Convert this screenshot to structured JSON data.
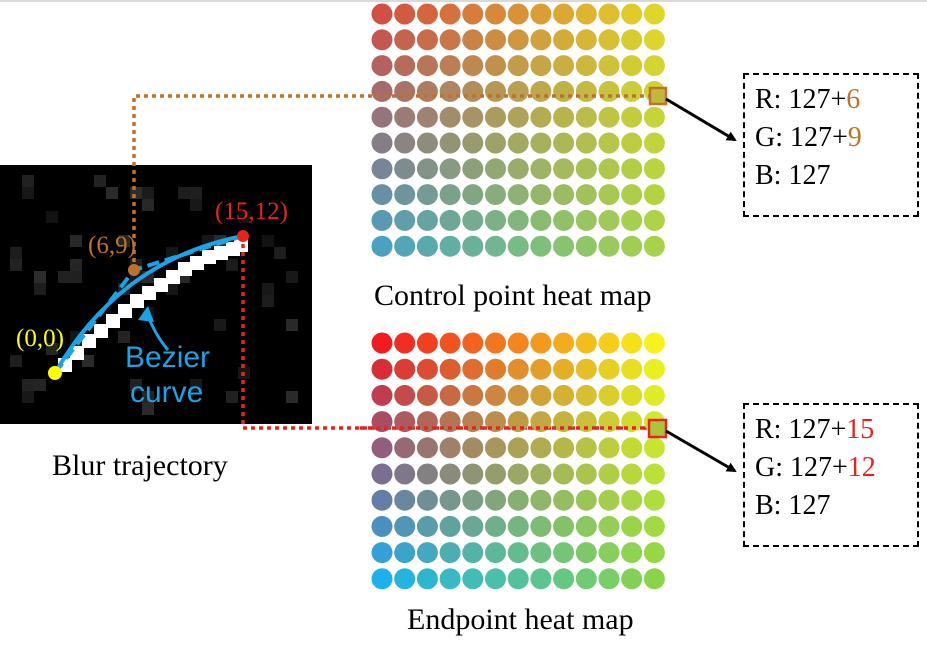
{
  "blur_panel": {
    "caption": "Blur trajectory",
    "points": {
      "start": "(0,0)",
      "control": "(6,9)",
      "end": "(15,12)"
    },
    "curve_label": [
      "Bezier",
      "curve"
    ]
  },
  "heatmaps": {
    "control": {
      "caption": "Control point heat map",
      "readout": {
        "r_prefix": "R: 127+",
        "r_offset": "6",
        "g_prefix": "G: 127+",
        "g_offset": "9",
        "b_text": "B: 127"
      },
      "grid": {
        "cols": 13,
        "rows": 10,
        "highlight": {
          "col": 11,
          "row": 4
        }
      }
    },
    "endpoint": {
      "caption": "Endpoint heat map",
      "readout": {
        "r_prefix": "R: 127+",
        "r_offset": "15",
        "g_prefix": "G: 127+",
        "g_offset": "12",
        "b_text": "B: 127"
      },
      "grid": {
        "cols": 13,
        "rows": 10,
        "highlight": {
          "col": 11,
          "row": 4
        }
      }
    }
  },
  "colors": {
    "control_accent": "#c0722a",
    "endpoint_accent": "#e8231c",
    "start_point": "#ffff00",
    "curve": "#1aa3e6",
    "control_grid_corners": {
      "top_left": "#d24f43",
      "top_right": "#e2d52a",
      "bottom_left": "#4aa2c0",
      "bottom_right": "#a6d34a"
    },
    "endpoint_grid_corners": {
      "top_left": "#f01c20",
      "top_right": "#f6f21a",
      "bottom_left": "#1cb0ec",
      "bottom_right": "#8ad44c"
    }
  }
}
